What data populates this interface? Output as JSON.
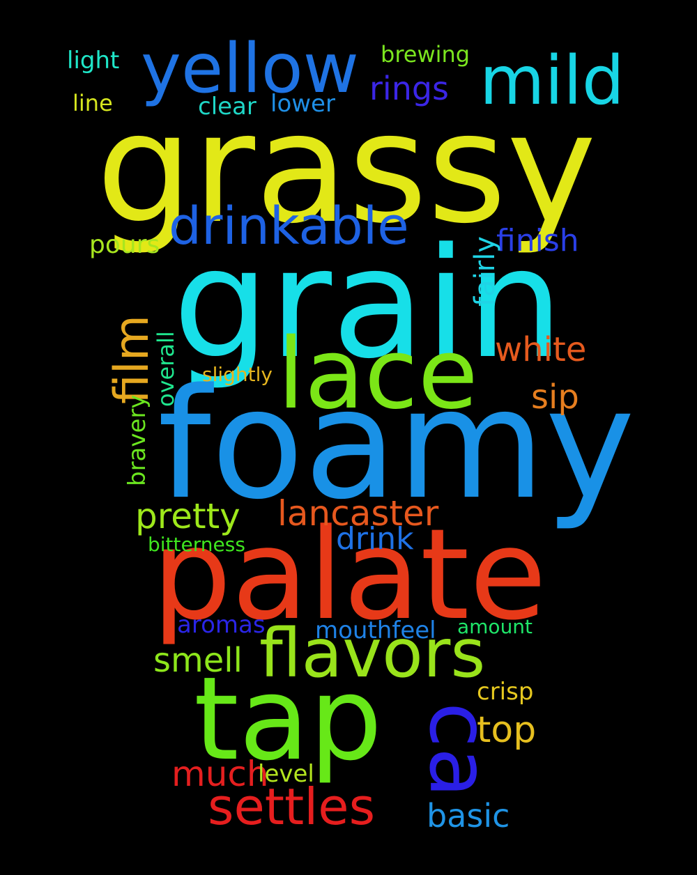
{
  "words": {
    "grain": "grain",
    "grassy": "grassy",
    "foamy": "foamy",
    "palate": "palate",
    "tap": "tap",
    "lace": "lace",
    "yellow": "yellow",
    "mild": "mild",
    "drinkable": "drinkable",
    "flavors": "flavors",
    "settles": "settles",
    "ca": "ca",
    "film": "film",
    "white": "white",
    "lancaster": "lancaster",
    "pretty": "pretty",
    "drink": "drink",
    "smell": "smell",
    "much": "much",
    "top": "top",
    "basic": "basic",
    "sip": "sip",
    "finish": "finish",
    "rings": "rings",
    "mouthfeel": "mouthfeel",
    "fairly": "fairly",
    "aromas": "aromas",
    "crisp": "crisp",
    "level": "level",
    "pours": "pours",
    "bravery": "bravery",
    "overall": "overall",
    "clear": "clear",
    "lower": "lower",
    "brewing": "brewing",
    "light": "light",
    "line": "line",
    "slightly": "slightly",
    "bitterness": "bitterness",
    "amount": "amount"
  },
  "colors": {
    "background": "#000000",
    "grain": "#17dfe8",
    "grassy": "#e2e817",
    "foamy": "#1991e6",
    "palate": "#e73918",
    "tap": "#67e818",
    "lace": "#7be617",
    "yellow": "#1f73e4",
    "mild": "#18d5e5",
    "drinkable": "#1e62e4",
    "flavors": "#99e31b",
    "settles": "#e61e1e",
    "ca": "#2a1fe6",
    "film": "#e6a820",
    "white": "#e65a1e",
    "lancaster": "#e6581e",
    "pretty": "#9ee81b",
    "drink": "#1f72e6",
    "smell": "#8de61b",
    "much": "#e41f1f",
    "top": "#e6bf1f",
    "basic": "#1f94e6",
    "sip": "#e67e1f",
    "finish": "#2a3fe6",
    "rings": "#3b26e6",
    "mouthfeel": "#1f82e6",
    "fairly": "#1fd4e6",
    "aromas": "#2a25e6",
    "crisp": "#e6c81f",
    "level": "#b4e61f",
    "pours": "#a8e61f",
    "bravery": "#6be61f",
    "overall": "#1fe68e",
    "clear": "#1fd6c6",
    "lower": "#1f8fe6",
    "brewing": "#7be61f",
    "light": "#1fe6c8",
    "line": "#d6e61f",
    "slightly": "#e6b51f",
    "bitterness": "#3fe61f",
    "amount": "#1fe669"
  }
}
